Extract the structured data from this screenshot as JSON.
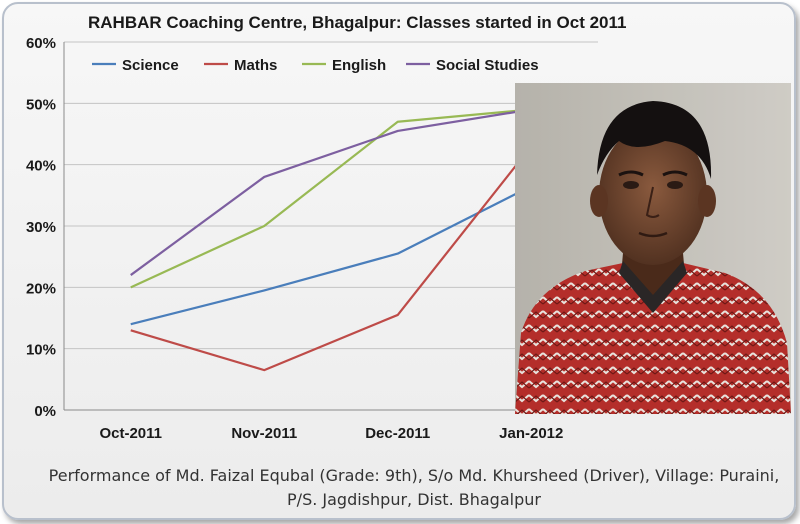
{
  "chart_data": {
    "type": "line",
    "title": "RAHBAR Coaching Centre, Bhagalpur: Classes started in Oct 2011",
    "categories": [
      "Oct-2011",
      "Nov-2011",
      "Dec-2011",
      "Jan-2012"
    ],
    "ylim": [
      0,
      60
    ],
    "yticks": [
      "0%",
      "10%",
      "20%",
      "30%",
      "40%",
      "50%",
      "60%"
    ],
    "y_unit": "%",
    "grid": true,
    "legend_position": "top",
    "series": [
      {
        "name": "Science",
        "color": "#4a7ebb",
        "values": [
          14,
          19.5,
          25.5,
          36.5
        ]
      },
      {
        "name": "Maths",
        "color": "#be4b48",
        "values": [
          13,
          6.5,
          15.5,
          43
        ]
      },
      {
        "name": "English",
        "color": "#98b954",
        "values": [
          20,
          30,
          47,
          49
        ]
      },
      {
        "name": "Social Studies",
        "color": "#7d5fa0",
        "values": [
          22,
          38,
          45.5,
          49
        ]
      }
    ]
  },
  "caption": "Performance of Md. Faizal Equbal (Grade: 9th), S/o Md. Khursheed (Driver), Village: Puraini, P/S. Jagdishpur, Dist. Bhagalpur",
  "photo": {
    "icon": "student-portrait"
  }
}
